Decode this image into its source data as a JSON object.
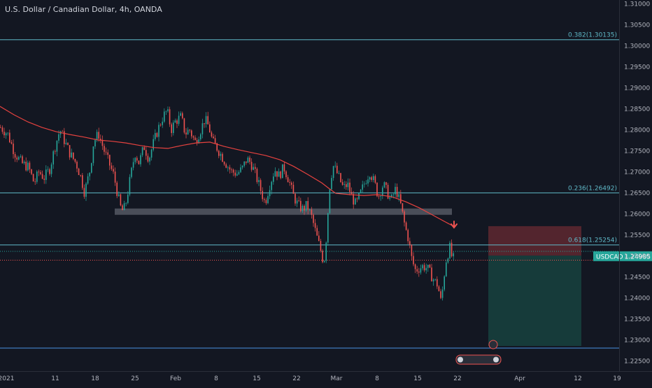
{
  "header": {
    "title": "U.S. Dollar / Canadian Dollar, 4h, OANDA"
  },
  "colors": {
    "background": "#131722",
    "up": "#26a69a",
    "down": "#ef5350",
    "ma": "#e5423f",
    "fib_line": "#5fb8c7",
    "grid_text": "#b2b5be",
    "price_badge": "#26a69a",
    "support_zone": "#787b86",
    "sl_zone": "#5b2730",
    "tp_zone": "#173f3d"
  },
  "chart_data": {
    "type": "candlestick",
    "symbol": "USDCAD",
    "timeframe": "4h",
    "last_price": 1.24985,
    "last_price_label": "1.24985",
    "symbol_label": "USDCAD",
    "ylim": [
      1.2225,
      1.3108
    ],
    "y_ticks": [
      "1.22500",
      "1.23000",
      "1.23500",
      "1.24000",
      "1.24500",
      "1.25000",
      "1.25500",
      "1.26000",
      "1.26500",
      "1.27000",
      "1.27500",
      "1.28000",
      "1.28500",
      "1.29000",
      "1.29500",
      "1.30000",
      "1.30500",
      "1.31000"
    ],
    "x_ticks": [
      "2021",
      "11",
      "18",
      "25",
      "Feb",
      "8",
      "15",
      "22",
      "Mar",
      "8",
      "15",
      "22",
      "Apr",
      "12",
      "19"
    ],
    "fib_levels": [
      {
        "value": 1.30135,
        "label": "0.382(1.30135)"
      },
      {
        "value": 1.26492,
        "label": "0.236(1.26492)"
      },
      {
        "value": 1.25254,
        "label": "0.618(1.25254)"
      }
    ],
    "support_line": 1.228,
    "support_zone": [
      1.2597,
      1.2612
    ],
    "trade": {
      "entry": 1.25,
      "stop": 1.257,
      "target": 1.2285
    },
    "moving_average": [
      [
        0,
        1.2855
      ],
      [
        20,
        1.2835
      ],
      [
        40,
        1.2818
      ],
      [
        60,
        1.2805
      ],
      [
        80,
        1.2795
      ],
      [
        100,
        1.2788
      ],
      [
        120,
        1.2782
      ],
      [
        140,
        1.2775
      ],
      [
        160,
        1.2772
      ],
      [
        180,
        1.2768
      ],
      [
        200,
        1.2762
      ],
      [
        220,
        1.2757
      ],
      [
        240,
        1.2755
      ],
      [
        260,
        1.2762
      ],
      [
        280,
        1.2768
      ],
      [
        300,
        1.277
      ],
      [
        320,
        1.276
      ],
      [
        340,
        1.2752
      ],
      [
        360,
        1.2745
      ],
      [
        380,
        1.2738
      ],
      [
        400,
        1.2728
      ],
      [
        420,
        1.2712
      ],
      [
        440,
        1.2693
      ],
      [
        460,
        1.2673
      ],
      [
        470,
        1.266
      ],
      [
        480,
        1.2648
      ],
      [
        500,
        1.2645
      ],
      [
        520,
        1.2643
      ],
      [
        540,
        1.2645
      ],
      [
        560,
        1.264
      ],
      [
        580,
        1.2628
      ],
      [
        600,
        1.2613
      ],
      [
        620,
        1.2595
      ],
      [
        640,
        1.2577
      ],
      [
        648,
        1.257
      ]
    ],
    "price_path": [
      [
        0,
        1.2805
      ],
      [
        10,
        1.279
      ],
      [
        20,
        1.2745
      ],
      [
        30,
        1.272
      ],
      [
        40,
        1.271
      ],
      [
        48,
        1.2672
      ],
      [
        55,
        1.27
      ],
      [
        62,
        1.2685
      ],
      [
        70,
        1.2705
      ],
      [
        78,
        1.276
      ],
      [
        85,
        1.28
      ],
      [
        92,
        1.277
      ],
      [
        100,
        1.274
      ],
      [
        108,
        1.272
      ],
      [
        115,
        1.2685
      ],
      [
        120,
        1.265
      ],
      [
        128,
        1.2705
      ],
      [
        133,
        1.277
      ],
      [
        140,
        1.279
      ],
      [
        148,
        1.275
      ],
      [
        155,
        1.272
      ],
      [
        162,
        1.269
      ],
      [
        168,
        1.264
      ],
      [
        173,
        1.2605
      ],
      [
        178,
        1.2615
      ],
      [
        185,
        1.268
      ],
      [
        192,
        1.2745
      ],
      [
        198,
        1.272
      ],
      [
        205,
        1.276
      ],
      [
        212,
        1.273
      ],
      [
        218,
        1.2765
      ],
      [
        225,
        1.28
      ],
      [
        232,
        1.283
      ],
      [
        238,
        1.2845
      ],
      [
        244,
        1.28
      ],
      [
        250,
        1.282
      ],
      [
        258,
        1.283
      ],
      [
        264,
        1.279
      ],
      [
        270,
        1.28
      ],
      [
        278,
        1.277
      ],
      [
        285,
        1.2795
      ],
      [
        292,
        1.2825
      ],
      [
        298,
        1.2805
      ],
      [
        303,
        1.277
      ],
      [
        308,
        1.276
      ],
      [
        315,
        1.274
      ],
      [
        322,
        1.272
      ],
      [
        330,
        1.27
      ],
      [
        338,
        1.2695
      ],
      [
        345,
        1.2705
      ],
      [
        352,
        1.273
      ],
      [
        358,
        1.272
      ],
      [
        365,
        1.269
      ],
      [
        372,
        1.2655
      ],
      [
        378,
        1.2625
      ],
      [
        385,
        1.267
      ],
      [
        392,
        1.2705
      ],
      [
        398,
        1.269
      ],
      [
        405,
        1.271
      ],
      [
        412,
        1.268
      ],
      [
        418,
        1.2645
      ],
      [
        425,
        1.262
      ],
      [
        432,
        1.261
      ],
      [
        438,
        1.262
      ],
      [
        445,
        1.259
      ],
      [
        452,
        1.2545
      ],
      [
        458,
        1.251
      ],
      [
        462,
        1.248
      ],
      [
        466,
        1.255
      ],
      [
        470,
        1.266
      ],
      [
        475,
        1.2715
      ],
      [
        480,
        1.27
      ],
      [
        485,
        1.268
      ],
      [
        490,
        1.266
      ],
      [
        496,
        1.267
      ],
      [
        502,
        1.264
      ],
      [
        508,
        1.262
      ],
      [
        515,
        1.265
      ],
      [
        522,
        1.268
      ],
      [
        528,
        1.27
      ],
      [
        535,
        1.267
      ],
      [
        540,
        1.264
      ],
      [
        547,
        1.267
      ],
      [
        553,
        1.265
      ],
      [
        558,
        1.263
      ],
      [
        565,
        1.266
      ],
      [
        572,
        1.262
      ],
      [
        578,
        1.257
      ],
      [
        583,
        1.254
      ],
      [
        588,
        1.249
      ],
      [
        593,
        1.2465
      ],
      [
        598,
        1.247
      ],
      [
        604,
        1.2475
      ],
      [
        610,
        1.247
      ],
      [
        615,
        1.2455
      ],
      [
        620,
        1.244
      ],
      [
        625,
        1.243
      ],
      [
        630,
        1.2385
      ],
      [
        633,
        1.244
      ],
      [
        637,
        1.249
      ],
      [
        642,
        1.252
      ],
      [
        646,
        1.249
      ],
      [
        650,
        1.2498
      ]
    ]
  }
}
